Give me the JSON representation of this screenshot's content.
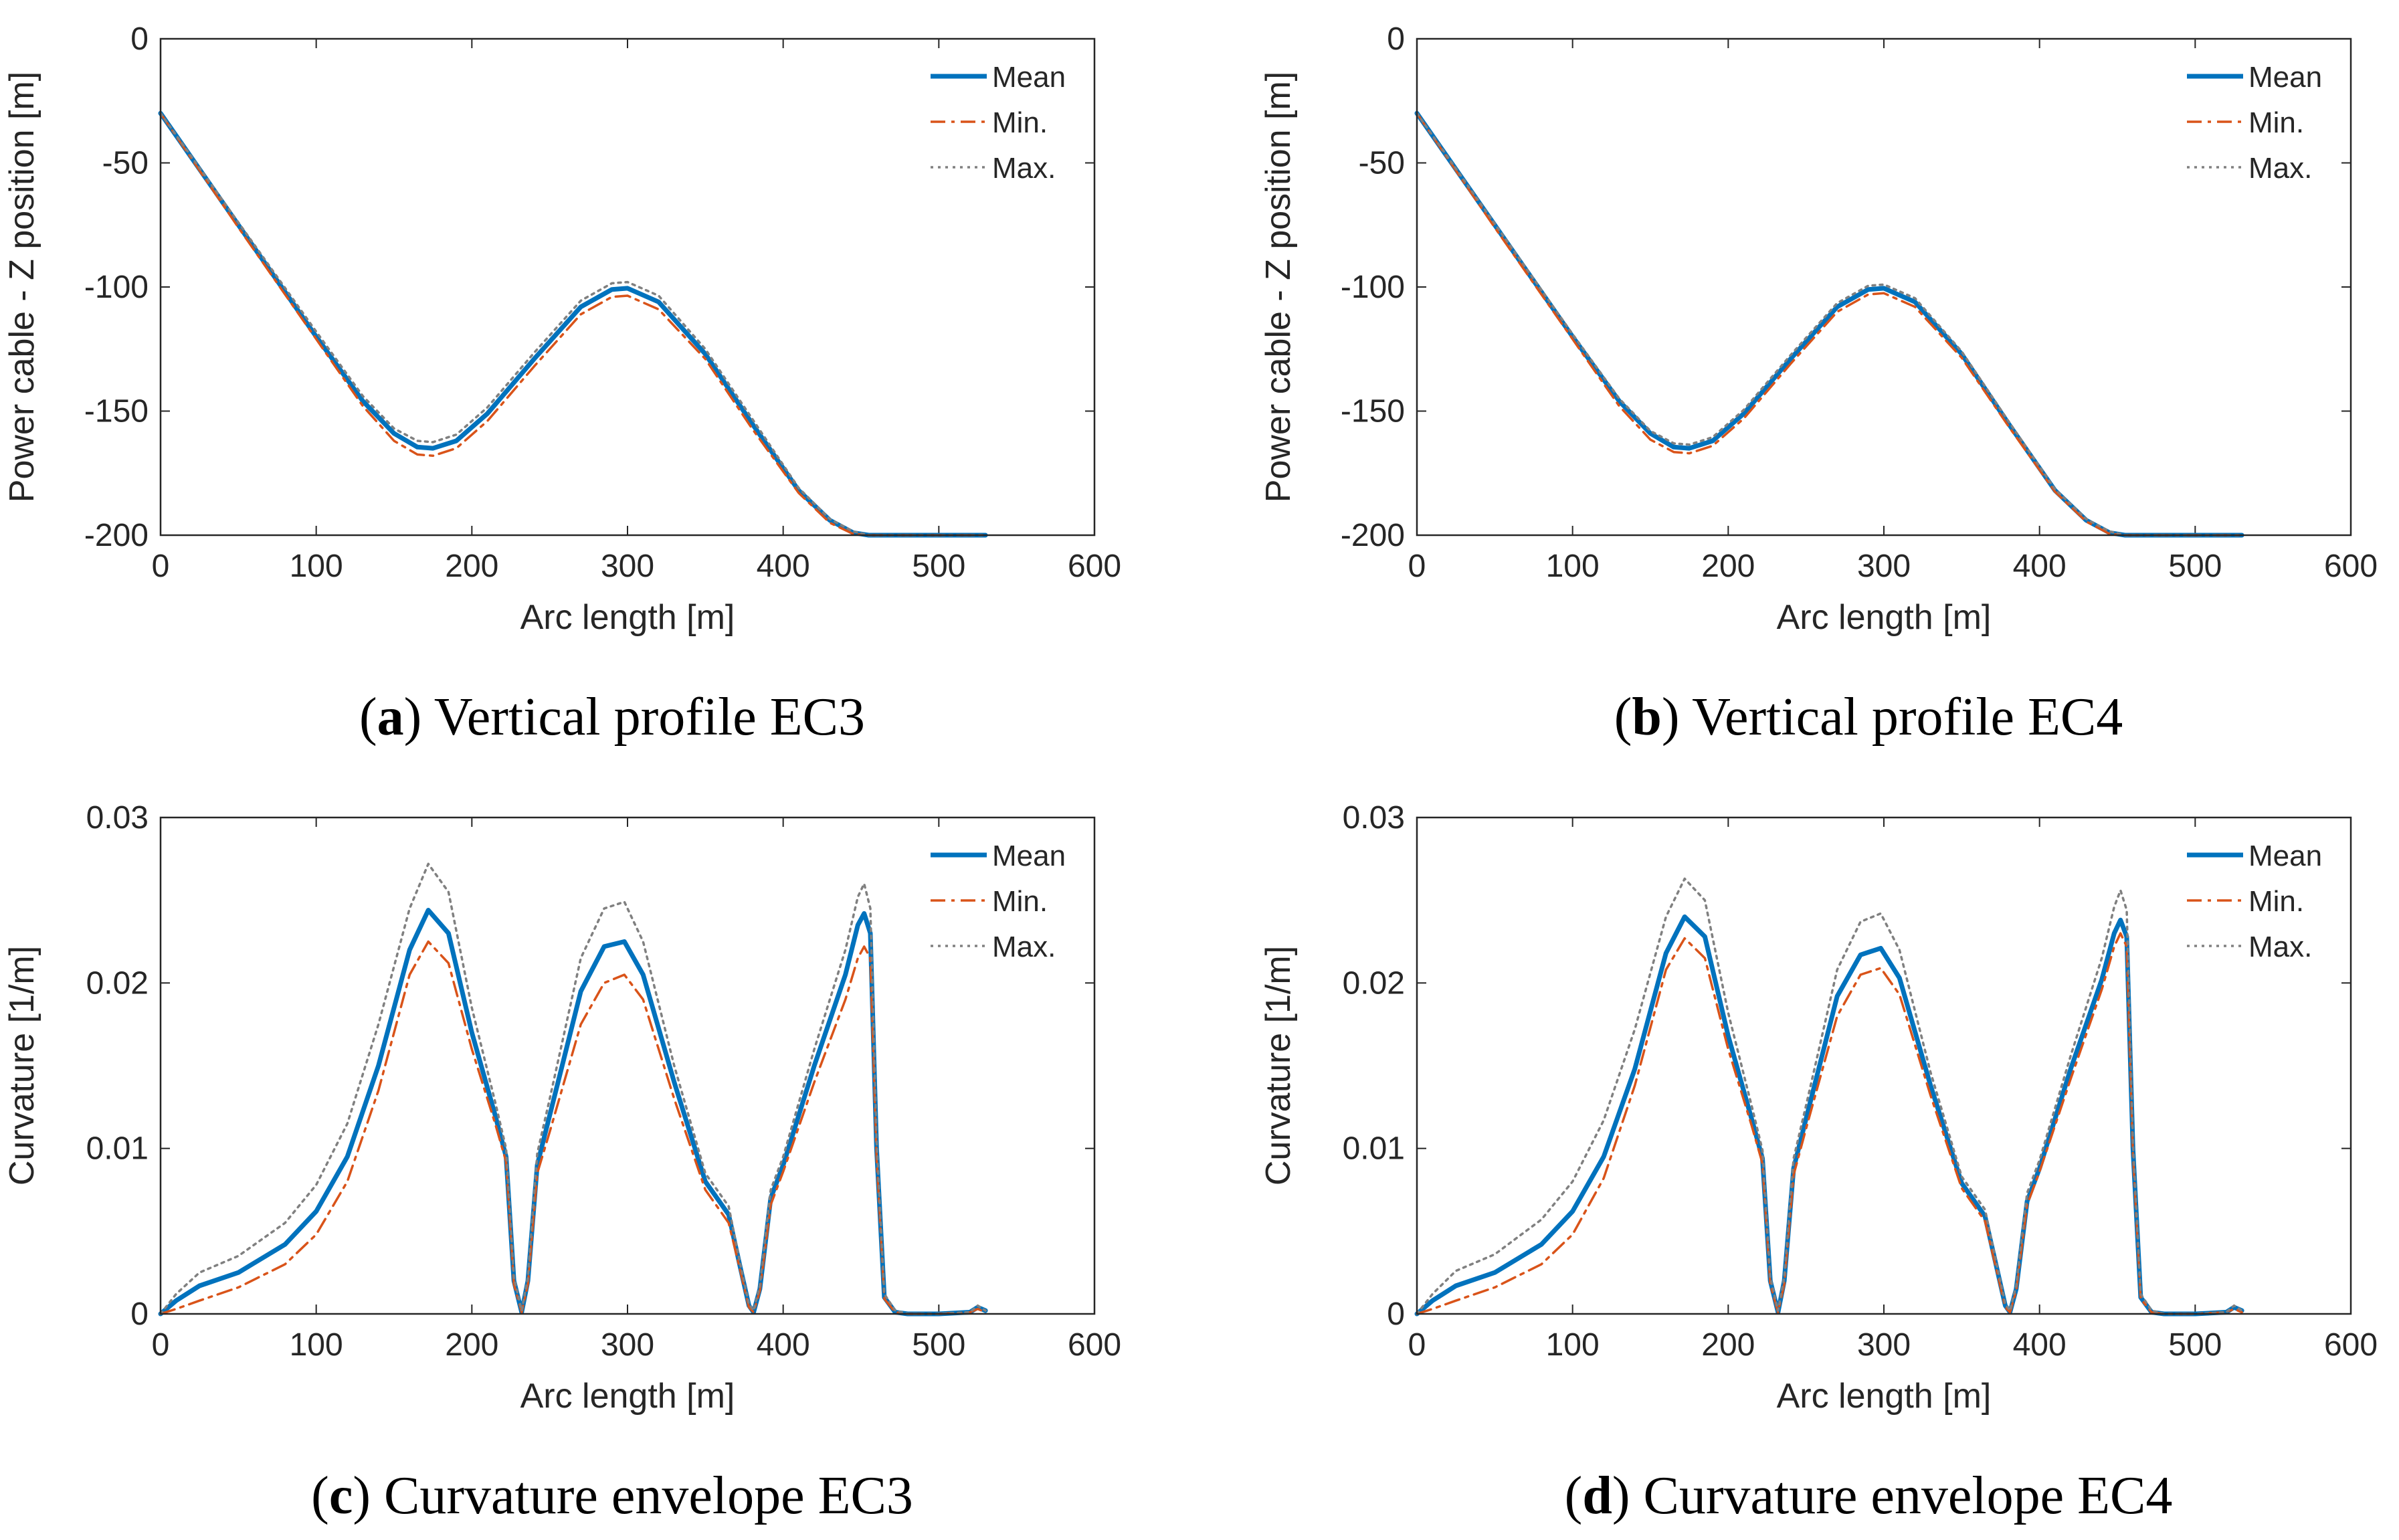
{
  "chart_data": [
    {
      "type": "line",
      "panel": "a",
      "caption_letter": "a",
      "caption_text": "Vertical profile EC3",
      "xlabel": "Arc length [m]",
      "ylabel": "Power cable - Z position [m]",
      "xlim": [
        0,
        600
      ],
      "ylim": [
        -200,
        0
      ],
      "xticks": [
        "0",
        "100",
        "200",
        "300",
        "400",
        "500",
        "600"
      ],
      "yticks": [
        "-200",
        "-150",
        "-100",
        "-50",
        "0"
      ],
      "legend_position": "top-right",
      "series": [
        {
          "name": "Mean",
          "color": "#0072BD",
          "style": "solid",
          "x": [
            0,
            50,
            100,
            130,
            150,
            165,
            175,
            190,
            210,
            240,
            270,
            290,
            300,
            320,
            350,
            380,
            410,
            430,
            445,
            455,
            470,
            500,
            530
          ],
          "y": [
            -30,
            -75,
            -120,
            -146,
            -159,
            -164.5,
            -165,
            -162,
            -151,
            -129,
            -108,
            -101,
            -100.5,
            -106,
            -127,
            -155,
            -182,
            -194,
            -199,
            -200,
            -200,
            -200,
            -200
          ]
        },
        {
          "name": "Min.",
          "color": "#D95319",
          "style": "dashdot",
          "x": [
            0,
            50,
            100,
            130,
            150,
            165,
            175,
            190,
            210,
            240,
            270,
            290,
            300,
            320,
            350,
            380,
            410,
            430,
            445,
            455,
            470,
            500,
            530
          ],
          "y": [
            -30,
            -76,
            -121,
            -148,
            -162,
            -167.5,
            -168,
            -165,
            -154,
            -132,
            -111,
            -104,
            -103.5,
            -109,
            -129,
            -157,
            -183,
            -195,
            -199.5,
            -200,
            -200,
            -200,
            -200
          ]
        },
        {
          "name": "Max.",
          "color": "#808080",
          "style": "dotted",
          "x": [
            0,
            50,
            100,
            130,
            150,
            165,
            175,
            190,
            210,
            240,
            270,
            290,
            300,
            320,
            350,
            380,
            410,
            430,
            445,
            455,
            470,
            500,
            530
          ],
          "y": [
            -30,
            -74,
            -118,
            -144,
            -157,
            -162,
            -162.5,
            -159.5,
            -148.5,
            -126.5,
            -105.5,
            -98.5,
            -98,
            -103.5,
            -125,
            -153,
            -181,
            -193.5,
            -198.5,
            -200,
            -200,
            -200,
            -200
          ]
        }
      ]
    },
    {
      "type": "line",
      "panel": "b",
      "caption_letter": "b",
      "caption_text": "Vertical profile EC4",
      "xlabel": "Arc length [m]",
      "ylabel": "Power cable - Z position [m]",
      "xlim": [
        0,
        600
      ],
      "ylim": [
        -200,
        0
      ],
      "xticks": [
        "0",
        "100",
        "200",
        "300",
        "400",
        "500",
        "600"
      ],
      "yticks": [
        "-200",
        "-150",
        "-100",
        "-50",
        "0"
      ],
      "legend_position": "top-right",
      "series": [
        {
          "name": "Mean",
          "color": "#0072BD",
          "style": "solid",
          "x": [
            0,
            50,
            100,
            130,
            150,
            165,
            175,
            190,
            210,
            240,
            270,
            290,
            300,
            320,
            350,
            380,
            410,
            430,
            445,
            455,
            470,
            500,
            530
          ],
          "y": [
            -30,
            -75,
            -120,
            -146,
            -159,
            -164.5,
            -165,
            -162,
            -151,
            -129,
            -108,
            -101,
            -100.5,
            -106,
            -127,
            -155,
            -182,
            -194,
            -199,
            -200,
            -200,
            -200,
            -200
          ]
        },
        {
          "name": "Min.",
          "color": "#D95319",
          "style": "dashdot",
          "x": [
            0,
            50,
            100,
            130,
            150,
            165,
            175,
            190,
            210,
            240,
            270,
            290,
            300,
            320,
            350,
            380,
            410,
            430,
            445,
            455,
            470,
            500,
            530
          ],
          "y": [
            -30,
            -76,
            -121,
            -148,
            -161.5,
            -166.5,
            -167,
            -164,
            -153,
            -131,
            -110,
            -103,
            -102.5,
            -108,
            -128.5,
            -156,
            -182.5,
            -194.5,
            -199.5,
            -200,
            -200,
            -200,
            -200
          ]
        },
        {
          "name": "Max.",
          "color": "#808080",
          "style": "dotted",
          "x": [
            0,
            50,
            100,
            130,
            150,
            165,
            175,
            190,
            210,
            240,
            270,
            290,
            300,
            320,
            350,
            380,
            410,
            430,
            445,
            455,
            470,
            500,
            530
          ],
          "y": [
            -30,
            -74.5,
            -119,
            -145,
            -158,
            -163,
            -163.5,
            -160.5,
            -149.5,
            -127.5,
            -106.5,
            -99.5,
            -99,
            -104.5,
            -126,
            -154,
            -181.5,
            -193.5,
            -198.5,
            -200,
            -200,
            -200,
            -200
          ]
        }
      ]
    },
    {
      "type": "line",
      "panel": "c",
      "caption_letter": "c",
      "caption_text": "Curvature envelope EC3",
      "xlabel": "Arc length [m]",
      "ylabel": "Curvature [1/m]",
      "xlim": [
        0,
        600
      ],
      "ylim": [
        0,
        0.03
      ],
      "xticks": [
        "0",
        "100",
        "200",
        "300",
        "400",
        "500",
        "600"
      ],
      "yticks": [
        "0",
        "0.01",
        "0.02",
        "0.03"
      ],
      "legend_position": "top-right",
      "series": [
        {
          "name": "Mean",
          "color": "#0072BD",
          "style": "solid",
          "x": [
            0,
            10,
            25,
            50,
            80,
            100,
            120,
            140,
            160,
            172,
            185,
            200,
            215,
            222,
            227,
            232,
            236,
            242,
            250,
            270,
            285,
            298,
            310,
            330,
            350,
            365,
            372,
            378,
            381,
            385,
            392,
            400,
            420,
            440,
            448,
            452,
            456,
            460,
            465,
            472,
            480,
            500,
            520,
            525,
            530
          ],
          "y": [
            0,
            0.0008,
            0.0017,
            0.0025,
            0.0042,
            0.0062,
            0.0095,
            0.015,
            0.022,
            0.0244,
            0.023,
            0.017,
            0.012,
            0.0095,
            0.002,
            0.0001,
            0.002,
            0.009,
            0.012,
            0.0195,
            0.0222,
            0.0225,
            0.0205,
            0.014,
            0.008,
            0.006,
            0.003,
            0.0005,
            0.0001,
            0.0015,
            0.007,
            0.009,
            0.015,
            0.0205,
            0.0235,
            0.0242,
            0.023,
            0.01,
            0.001,
            0.0001,
            0,
            0,
            0.0001,
            0.0004,
            0.0002
          ]
        },
        {
          "name": "Min.",
          "color": "#D95319",
          "style": "dashdot",
          "x": [
            0,
            10,
            25,
            50,
            80,
            100,
            120,
            140,
            160,
            172,
            185,
            200,
            215,
            222,
            227,
            232,
            236,
            242,
            250,
            270,
            285,
            298,
            310,
            330,
            350,
            365,
            372,
            378,
            381,
            385,
            392,
            400,
            420,
            440,
            448,
            452,
            456,
            460,
            465,
            472,
            480,
            500,
            520,
            525,
            530
          ],
          "y": [
            0,
            0.0003,
            0.0008,
            0.0016,
            0.003,
            0.0048,
            0.008,
            0.0135,
            0.0205,
            0.0225,
            0.0212,
            0.016,
            0.0115,
            0.0092,
            0.0018,
            0.0001,
            0.0018,
            0.0085,
            0.011,
            0.0175,
            0.02,
            0.0205,
            0.019,
            0.013,
            0.0075,
            0.0055,
            0.0028,
            0.0004,
            0.0001,
            0.0014,
            0.0066,
            0.0086,
            0.014,
            0.019,
            0.0215,
            0.0222,
            0.0215,
            0.0095,
            0.0009,
            0.0001,
            0,
            0,
            0.0001,
            0.0003,
            0.0001
          ]
        },
        {
          "name": "Max.",
          "color": "#808080",
          "style": "dotted",
          "x": [
            0,
            10,
            25,
            50,
            80,
            100,
            120,
            140,
            160,
            172,
            185,
            200,
            215,
            222,
            227,
            232,
            236,
            242,
            250,
            270,
            285,
            298,
            310,
            330,
            350,
            365,
            372,
            378,
            381,
            385,
            392,
            400,
            420,
            440,
            448,
            452,
            456,
            460,
            465,
            472,
            480,
            500,
            520,
            525,
            530
          ],
          "y": [
            0,
            0.0012,
            0.0025,
            0.0035,
            0.0055,
            0.0078,
            0.0115,
            0.0175,
            0.0245,
            0.0272,
            0.0255,
            0.0185,
            0.0128,
            0.01,
            0.0022,
            0.0002,
            0.0022,
            0.0097,
            0.013,
            0.0215,
            0.0245,
            0.0249,
            0.0225,
            0.015,
            0.0085,
            0.0065,
            0.0032,
            0.0006,
            0.0002,
            0.0017,
            0.0075,
            0.0095,
            0.016,
            0.022,
            0.0252,
            0.026,
            0.0245,
            0.0105,
            0.0012,
            0.0002,
            0,
            0,
            0.0001,
            0.0005,
            0.0002
          ]
        }
      ]
    },
    {
      "type": "line",
      "panel": "d",
      "caption_letter": "d",
      "caption_text": "Curvature envelope EC4",
      "xlabel": "Arc length [m]",
      "ylabel": "Curvature [1/m]",
      "xlim": [
        0,
        600
      ],
      "ylim": [
        0,
        0.03
      ],
      "xticks": [
        "0",
        "100",
        "200",
        "300",
        "400",
        "500",
        "600"
      ],
      "yticks": [
        "0",
        "0.01",
        "0.02",
        "0.03"
      ],
      "legend_position": "top-right",
      "series": [
        {
          "name": "Mean",
          "color": "#0072BD",
          "style": "solid",
          "x": [
            0,
            10,
            25,
            50,
            80,
            100,
            120,
            140,
            160,
            172,
            185,
            200,
            215,
            222,
            227,
            232,
            236,
            242,
            250,
            270,
            285,
            298,
            310,
            330,
            350,
            365,
            372,
            378,
            381,
            385,
            392,
            400,
            420,
            440,
            448,
            452,
            456,
            460,
            465,
            472,
            480,
            500,
            520,
            525,
            530
          ],
          "y": [
            0,
            0.0008,
            0.0017,
            0.0025,
            0.0042,
            0.0062,
            0.0095,
            0.0148,
            0.0218,
            0.024,
            0.0228,
            0.0168,
            0.0118,
            0.0094,
            0.002,
            0.0001,
            0.002,
            0.0088,
            0.0118,
            0.0192,
            0.0217,
            0.0221,
            0.0203,
            0.0138,
            0.0079,
            0.0059,
            0.003,
            0.0005,
            0.0001,
            0.0015,
            0.0068,
            0.0088,
            0.0148,
            0.0202,
            0.023,
            0.0238,
            0.0228,
            0.01,
            0.001,
            0.0001,
            0,
            0,
            0.0001,
            0.0004,
            0.0002
          ]
        },
        {
          "name": "Min.",
          "color": "#D95319",
          "style": "dashdot",
          "x": [
            0,
            10,
            25,
            50,
            80,
            100,
            120,
            140,
            160,
            172,
            185,
            200,
            215,
            222,
            227,
            232,
            236,
            242,
            250,
            270,
            285,
            298,
            310,
            330,
            350,
            365,
            372,
            378,
            381,
            385,
            392,
            400,
            420,
            440,
            448,
            452,
            456,
            460,
            465,
            472,
            480,
            500,
            520,
            525,
            530
          ],
          "y": [
            0,
            0.0003,
            0.0008,
            0.0016,
            0.003,
            0.0048,
            0.0082,
            0.0138,
            0.0208,
            0.0227,
            0.0215,
            0.016,
            0.0114,
            0.0091,
            0.0018,
            0.0001,
            0.0018,
            0.0084,
            0.0112,
            0.018,
            0.0205,
            0.0209,
            0.0193,
            0.0132,
            0.0076,
            0.0056,
            0.0028,
            0.0004,
            0.0001,
            0.0014,
            0.0066,
            0.0086,
            0.0142,
            0.0196,
            0.0222,
            0.023,
            0.0222,
            0.0097,
            0.0009,
            0.0001,
            0,
            0,
            0.0001,
            0.0003,
            0.0001
          ]
        },
        {
          "name": "Max.",
          "color": "#808080",
          "style": "dotted",
          "x": [
            0,
            10,
            25,
            50,
            80,
            100,
            120,
            140,
            160,
            172,
            185,
            200,
            215,
            222,
            227,
            232,
            236,
            242,
            250,
            270,
            285,
            298,
            310,
            330,
            350,
            365,
            372,
            378,
            381,
            385,
            392,
            400,
            420,
            440,
            448,
            452,
            456,
            460,
            465,
            472,
            480,
            500,
            520,
            525,
            530
          ],
          "y": [
            0,
            0.0012,
            0.0026,
            0.0036,
            0.0057,
            0.008,
            0.0117,
            0.0172,
            0.024,
            0.0263,
            0.025,
            0.0182,
            0.0126,
            0.0099,
            0.0022,
            0.0002,
            0.0022,
            0.0094,
            0.0126,
            0.0208,
            0.0237,
            0.0242,
            0.022,
            0.0146,
            0.0083,
            0.0063,
            0.0032,
            0.0006,
            0.0002,
            0.0017,
            0.0073,
            0.0093,
            0.0156,
            0.0215,
            0.0246,
            0.0256,
            0.0244,
            0.0104,
            0.0012,
            0.0002,
            0,
            0,
            0.0001,
            0.0005,
            0.0002
          ]
        }
      ]
    }
  ]
}
